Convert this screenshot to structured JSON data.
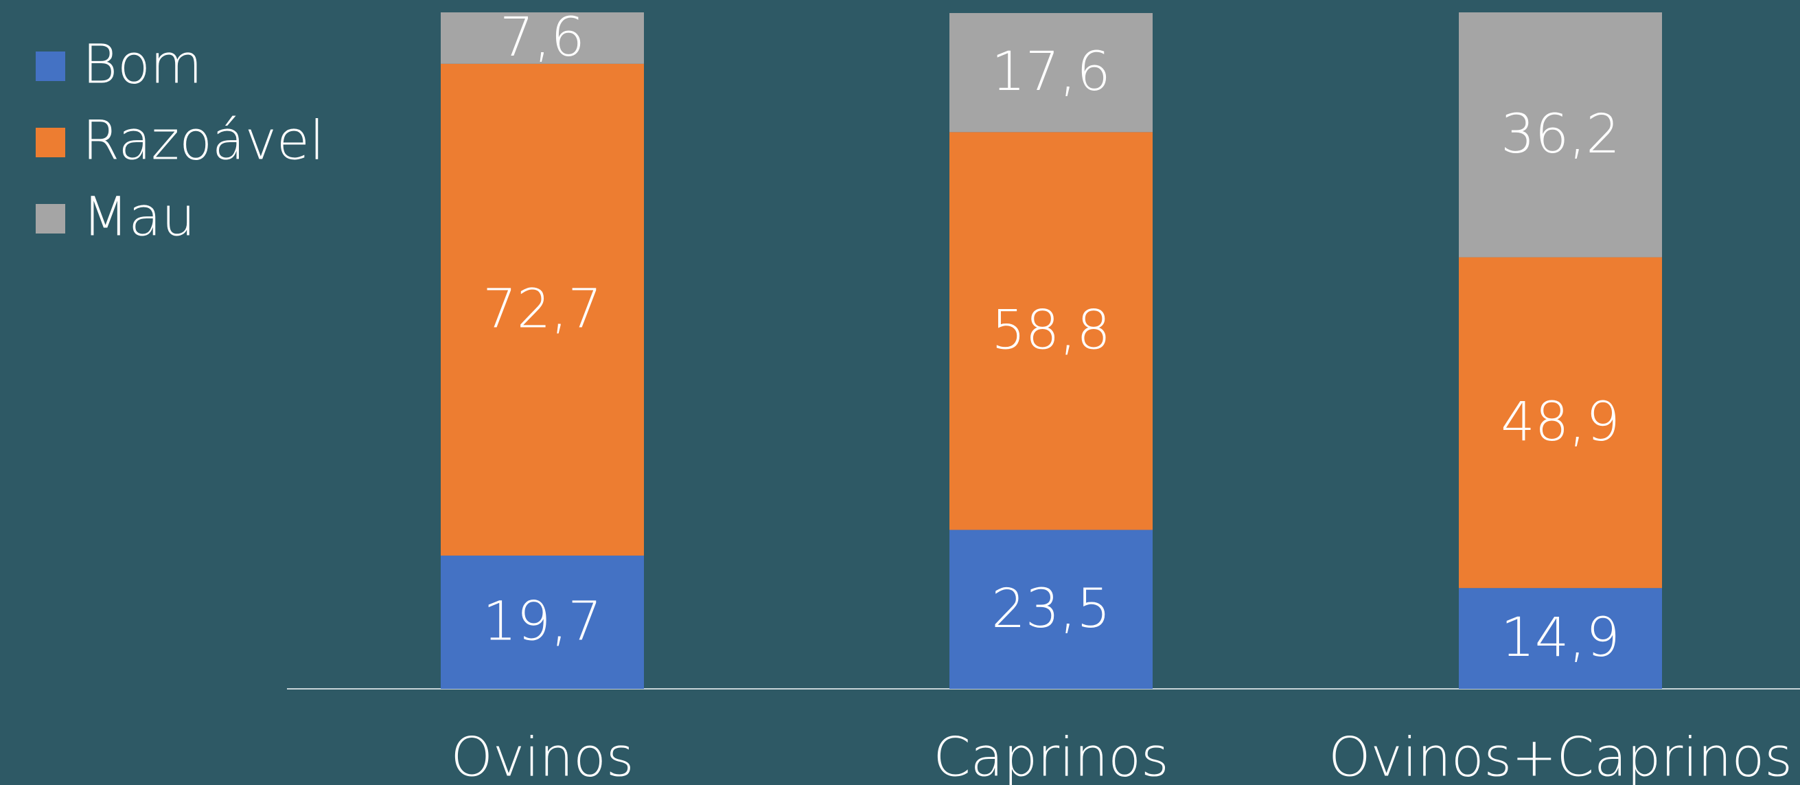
{
  "chart_data": {
    "type": "stacked_bar",
    "categories": [
      "Ovinos",
      "Caprinos",
      "Ovinos+Caprinos"
    ],
    "series": [
      {
        "name": "Bom",
        "color": "#4472c4",
        "values": [
          19.7,
          23.5,
          14.9
        ],
        "value_labels": [
          "19,7",
          "23,5",
          "14,9"
        ]
      },
      {
        "name": "Razoável",
        "color": "#ed7d31",
        "values": [
          72.7,
          58.8,
          48.9
        ],
        "value_labels": [
          "72,7",
          "58,8",
          "48,9"
        ]
      },
      {
        "name": "Mau",
        "color": "#a5a5a5",
        "values": [
          7.6,
          17.6,
          36.2
        ],
        "value_labels": [
          "7,6",
          "17,6",
          "36,2"
        ]
      }
    ],
    "ylim": [
      0,
      100
    ],
    "legend": "top-left"
  }
}
